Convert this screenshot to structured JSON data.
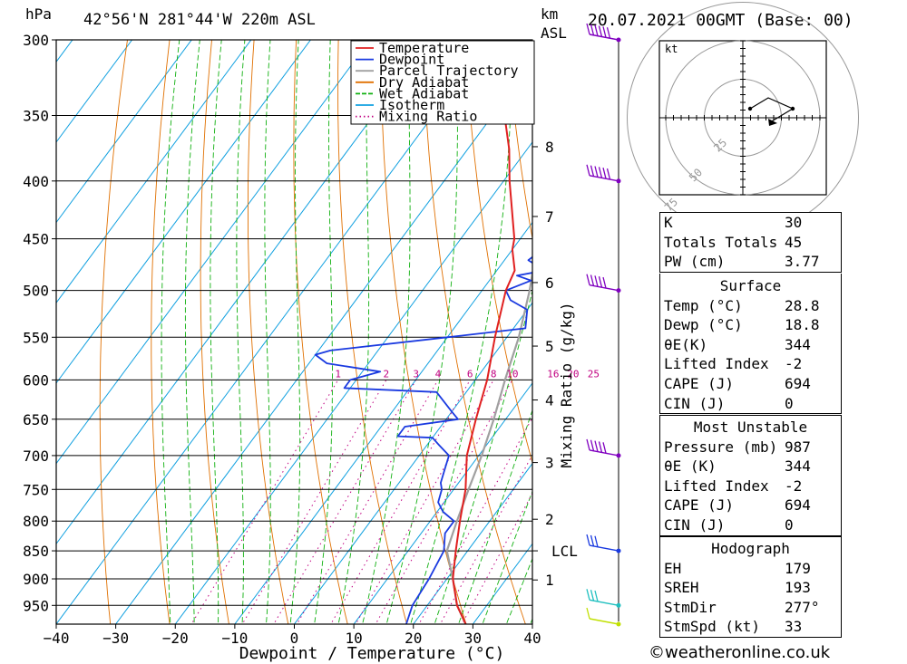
{
  "header": {
    "pressure_unit": "hPa",
    "location": "42°56'N  281°44'W  220m  ASL",
    "km_unit": "km",
    "asl_label": "ASL",
    "datetime": "20.07.2021  00GMT  (Base: 00)"
  },
  "chart_data": {
    "type": "line",
    "title": "",
    "xlabel": "Dewpoint / Temperature (°C)",
    "ylabel": "hPa",
    "right_axis_label": "Mixing Ratio (g/kg)",
    "xlim": [
      -40,
      40
    ],
    "ylim": [
      987,
      300
    ],
    "log_pressure_axis": true,
    "pressure_levels": [
      300,
      350,
      400,
      450,
      500,
      550,
      600,
      650,
      700,
      750,
      800,
      850,
      900,
      950
    ],
    "temperature_ticks": [
      -40,
      -30,
      -20,
      -10,
      0,
      10,
      20,
      30,
      40
    ],
    "mixing_ratio_labels": [
      "1",
      "2",
      "3",
      "4",
      "6",
      "8",
      "10",
      "16",
      "20",
      "25"
    ],
    "mixing_ratio_values": [
      1,
      2,
      3,
      4,
      6,
      8,
      10,
      16,
      20,
      25
    ],
    "km_labels": [
      {
        "label": "8",
        "p": 373
      },
      {
        "label": "7",
        "p": 430
      },
      {
        "label": "6",
        "p": 492
      },
      {
        "label": "5",
        "p": 560
      },
      {
        "label": "4",
        "p": 625
      },
      {
        "label": "3",
        "p": 710
      },
      {
        "label": "2",
        "p": 797
      },
      {
        "label": "LCL",
        "p": 850
      },
      {
        "label": "1",
        "p": 902
      }
    ],
    "legend_location": "top-center",
    "legend": [
      {
        "name": "Temperature",
        "color": "#e02020",
        "style": "solid"
      },
      {
        "name": "Dewpoint",
        "color": "#1a3ae0",
        "style": "solid"
      },
      {
        "name": "Parcel Trajectory",
        "color": "#a0a0a0",
        "style": "solid"
      },
      {
        "name": "Dry Adiabat",
        "color": "#e07000",
        "style": "solid"
      },
      {
        "name": "Wet Adiabat",
        "color": "#10b010",
        "style": "dashed"
      },
      {
        "name": "Isotherm",
        "color": "#10a0e0",
        "style": "solid"
      },
      {
        "name": "Mixing Ratio",
        "color": "#c00080",
        "style": "dotted"
      }
    ],
    "series": [
      {
        "name": "Temperature",
        "p": [
          987,
          950,
          900,
          850,
          800,
          750,
          700,
          650,
          600,
          550,
          500,
          480,
          460,
          450,
          400,
          375,
          350,
          325,
          300
        ],
        "t": [
          28.8,
          25,
          21,
          18,
          15,
          12,
          8,
          5,
          2,
          -2,
          -6,
          -7,
          -10,
          -11,
          -19,
          -23,
          -28,
          -32,
          -37
        ]
      },
      {
        "name": "Dewpoint",
        "p": [
          987,
          950,
          900,
          850,
          820,
          800,
          785,
          770,
          750,
          740,
          720,
          700,
          685,
          675,
          673,
          660,
          650,
          640,
          615,
          610,
          600,
          590,
          580,
          570,
          565,
          550,
          540,
          520,
          510,
          500,
          490,
          485,
          480,
          470,
          460,
          450,
          440,
          420,
          400,
          390,
          380,
          375,
          360,
          350,
          340,
          330,
          320,
          300
        ],
        "t": [
          18.8,
          17.5,
          17,
          16,
          14,
          14,
          11,
          9,
          8,
          7,
          6,
          5,
          2,
          0,
          -6,
          -6,
          2,
          0,
          -5,
          -21,
          -21,
          -17,
          -27,
          -30,
          -28,
          -10,
          2,
          0,
          -4,
          -6,
          -3,
          -6,
          -2,
          -6,
          -5,
          -5,
          -6,
          -6,
          -12,
          -13,
          -13,
          -16,
          -18,
          -16,
          -23,
          -30,
          -32,
          -40
        ]
      },
      {
        "name": "Parcel Trajectory",
        "p": [
          987,
          950,
          900,
          850,
          800,
          750,
          700,
          650,
          600,
          550,
          500,
          450,
          400,
          375,
          365
        ],
        "t": [
          28.8,
          25,
          21,
          16.5,
          14.5,
          12.5,
          10.5,
          8,
          5,
          2,
          -2,
          -7,
          -14,
          -18,
          -20
        ]
      }
    ],
    "wind_barbs": [
      {
        "p": 300,
        "speed_kt": 55,
        "color": "#8000c0"
      },
      {
        "p": 400,
        "speed_kt": 55,
        "color": "#8000c0"
      },
      {
        "p": 500,
        "speed_kt": 45,
        "color": "#8000c0"
      },
      {
        "p": 700,
        "speed_kt": 45,
        "color": "#8000c0"
      },
      {
        "p": 850,
        "speed_kt": 30,
        "color": "#1a3ae0"
      },
      {
        "p": 950,
        "speed_kt": 25,
        "color": "#20c0c0"
      },
      {
        "p": 987,
        "speed_kt": 10,
        "color": "#c0e000"
      }
    ]
  },
  "hodograph": {
    "unit_label": "kt",
    "ring_labels": [
      "25",
      "50",
      "75"
    ],
    "points_kt": [
      [
        0,
        -12
      ],
      [
        10,
        -7
      ],
      [
        18,
        -9
      ],
      [
        12,
        -18
      ],
      [
        5,
        -3
      ]
    ]
  },
  "indices": [
    {
      "label": "K",
      "value": "30"
    },
    {
      "label": "Totals Totals",
      "value": "45"
    },
    {
      "label": "PW (cm)",
      "value": "3.77"
    }
  ],
  "surface": {
    "title": "Surface",
    "rows": [
      {
        "label": "Temp (°C)",
        "value": "28.8"
      },
      {
        "label": "Dewp (°C)",
        "value": "18.8"
      },
      {
        "label": "θE(K)",
        "value": "344"
      },
      {
        "label": "Lifted Index",
        "value": "-2"
      },
      {
        "label": "CAPE (J)",
        "value": "694"
      },
      {
        "label": "CIN (J)",
        "value": "0"
      }
    ]
  },
  "most_unstable": {
    "title": "Most Unstable",
    "rows": [
      {
        "label": "Pressure (mb)",
        "value": "987"
      },
      {
        "label": "θE (K)",
        "value": "344"
      },
      {
        "label": "Lifted Index",
        "value": "-2"
      },
      {
        "label": "CAPE (J)",
        "value": "694"
      },
      {
        "label": "CIN (J)",
        "value": "0"
      }
    ]
  },
  "hodo_stats": {
    "title": "Hodograph",
    "rows": [
      {
        "label": "EH",
        "value": "179"
      },
      {
        "label": "SREH",
        "value": "193"
      },
      {
        "label": "StmDir",
        "value": "277°"
      },
      {
        "label": "StmSpd (kt)",
        "value": "33"
      }
    ]
  },
  "credit": "©weatheronline.co.uk"
}
